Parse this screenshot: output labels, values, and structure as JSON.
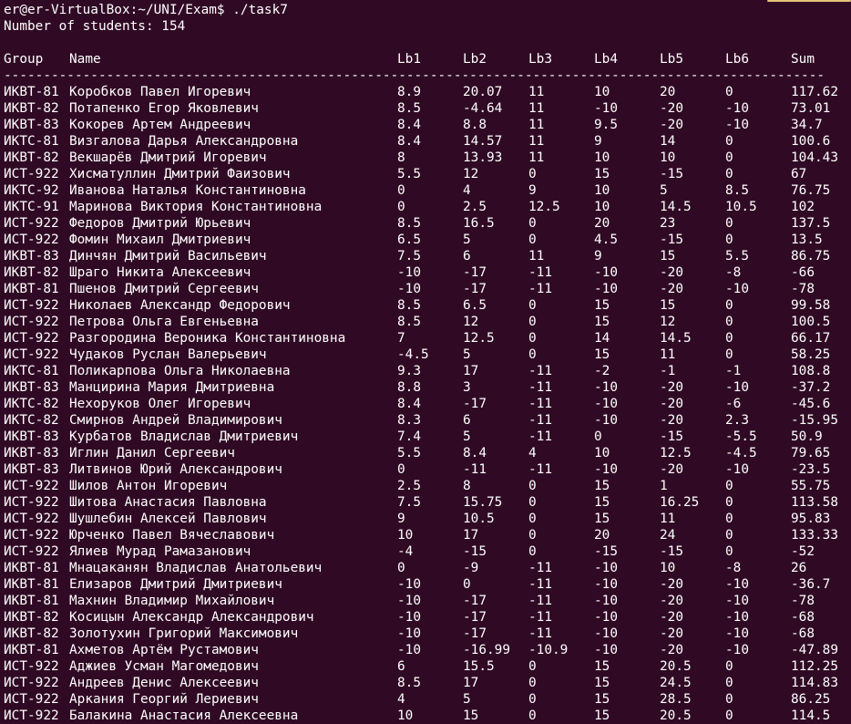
{
  "terminal": {
    "prompt": "er@er-VirtualBox:~/UNI/Exam$ ./task7",
    "count_line": "Number of students: 154",
    "headers": [
      "Group",
      "Name",
      "Lb1",
      "Lb2",
      "Lb3",
      "Lb4",
      "Lb5",
      "Lb6",
      "Sum"
    ],
    "separator": "--------------------------------------------------------------------------------------------------------------",
    "colors": {
      "background": "#300a24",
      "text": "#ffffff",
      "scroll_thumb": "#e6c27a"
    }
  },
  "rows": [
    [
      "ИКВТ-81",
      "Коробков Павел Игоревич",
      "8.9",
      "20.07",
      "11",
      "10",
      "20",
      "0",
      "117.62"
    ],
    [
      "ИКВТ-82",
      "Потапенко Егор Яковлевич",
      "8.5",
      "-4.64",
      "11",
      "-10",
      "-20",
      "-10",
      "73.01"
    ],
    [
      "ИКВТ-83",
      "Кокорев Артем Андреевич",
      "8.4",
      "8.8",
      "11",
      "9.5",
      "-20",
      "-10",
      "34.7"
    ],
    [
      "ИКТС-81",
      "Визгалова Дарья Александровна",
      "8.4",
      "14.57",
      "11",
      "9",
      "14",
      "0",
      "100.6"
    ],
    [
      "ИКВТ-82",
      "Векшарёв Дмитрий Игоревич",
      "8",
      "13.93",
      "11",
      "10",
      "10",
      "0",
      "104.43"
    ],
    [
      "ИСТ-922",
      "Хисматуллин Дмитрий Фаизович",
      "5.5",
      "12",
      "0",
      "15",
      "-15",
      "0",
      "67"
    ],
    [
      "ИКТС-92",
      "Иванова Наталья Константиновна",
      "0",
      "4",
      "9",
      "10",
      "5",
      "8.5",
      "76.75"
    ],
    [
      "ИКТС-91",
      "Маринова Виктория Константиновна",
      "0",
      "2.5",
      "12.5",
      "10",
      "14.5",
      "10.5",
      "102"
    ],
    [
      "ИСТ-922",
      "Федоров Дмитрий Юрьевич",
      "8.5",
      "16.5",
      "0",
      "20",
      "23",
      "0",
      "137.5"
    ],
    [
      "ИСТ-922",
      "Фомин Михаил Дмитриевич",
      "6.5",
      "5",
      "0",
      "4.5",
      "-15",
      "0",
      "13.5"
    ],
    [
      "ИКВТ-83",
      "Динчян Дмитрий Васильевич",
      "7.5",
      "6",
      "11",
      "9",
      "15",
      "5.5",
      "86.75"
    ],
    [
      "ИКВТ-82",
      "Шраго Никита Алексеевич",
      "-10",
      "-17",
      "-11",
      "-10",
      "-20",
      "-8",
      "-66"
    ],
    [
      "ИКВТ-81",
      "Пшенов Дмитрий Сергеевич",
      "-10",
      "-17",
      "-11",
      "-10",
      "-20",
      "-10",
      "-78"
    ],
    [
      "ИСТ-922",
      "Николаев Александр Федорович",
      "8.5",
      "6.5",
      "0",
      "15",
      "15",
      "0",
      "99.58"
    ],
    [
      "ИСТ-922",
      "Петрова Ольга Евгеньевна",
      "8.5",
      "12",
      "0",
      "15",
      "12",
      "0",
      "100.5"
    ],
    [
      "ИСТ-922",
      "Разгородина Вероника Константиновна",
      "7",
      "12.5",
      "0",
      "14",
      "14.5",
      "0",
      "66.17"
    ],
    [
      "ИСТ-922",
      "Чудаков Руслан Валерьевич",
      "-4.5",
      "5",
      "0",
      "15",
      "11",
      "0",
      "58.25"
    ],
    [
      "ИКТС-81",
      "Поликарпова Ольга Николаевна",
      "9.3",
      "17",
      "-11",
      "-2",
      "-1",
      "-1",
      "108.8"
    ],
    [
      "ИКВТ-83",
      "Манцирина Мария Дмитриевна",
      "8.8",
      "3",
      "-11",
      "-10",
      "-20",
      "-10",
      "-37.2"
    ],
    [
      "ИКТС-82",
      "Нехоруков Олег Игоревич",
      "8.4",
      "-17",
      "-11",
      "-10",
      "-20",
      "-6",
      "-45.6"
    ],
    [
      "ИКТС-82",
      "Смирнов Андрей Владимирович",
      "8.3",
      "6",
      "-11",
      "-10",
      "-20",
      "2.3",
      "-15.95"
    ],
    [
      "ИКВТ-83",
      "Курбатов Владислав Дмитриевич",
      "7.4",
      "5",
      "-11",
      "0",
      "-15",
      "-5.5",
      "50.9"
    ],
    [
      "ИКВТ-83",
      "Иглин Данил Сергеевич",
      "5.5",
      "8.4",
      "4",
      "10",
      "12.5",
      "-4.5",
      "79.65"
    ],
    [
      "ИКВТ-83",
      "Литвинов Юрий Александрович",
      "0",
      "-11",
      "-11",
      "-10",
      "-20",
      "-10",
      "-23.5"
    ],
    [
      "ИСТ-922",
      "Шилов Антон Игоревич",
      "2.5",
      "8",
      "0",
      "15",
      "1",
      "0",
      "55.75"
    ],
    [
      "ИСТ-922",
      "Шитова Анастасия Павловна",
      "7.5",
      "15.75",
      "0",
      "15",
      "16.25",
      "0",
      "113.58"
    ],
    [
      "ИСТ-922",
      "Шушлебин Алексей Павлович",
      "9",
      "10.5",
      "0",
      "15",
      "11",
      "0",
      "95.83"
    ],
    [
      "ИСТ-922",
      "Юрченко Павел Вячеславович",
      "10",
      "17",
      "0",
      "20",
      "24",
      "0",
      "133.33"
    ],
    [
      "ИСТ-922",
      "Ялиев Мурад Рамазанович",
      "-4",
      "-15",
      "0",
      "-15",
      "-15",
      "0",
      "-52"
    ],
    [
      "ИКВТ-81",
      "Мнацаканян Владислав Анатольевич",
      "0",
      "-9",
      "-11",
      "-10",
      "10",
      "-8",
      "26"
    ],
    [
      "ИКВТ-81",
      "Елизаров Дмитрий Дмитриевич",
      "-10",
      "0",
      "-11",
      "-10",
      "-20",
      "-10",
      "-36.7"
    ],
    [
      "ИКВТ-81",
      "Махнин Владимир Михайлович",
      "-10",
      "-17",
      "-11",
      "-10",
      "-20",
      "-10",
      "-78"
    ],
    [
      "ИКВТ-82",
      "Косицын Александр Александрович",
      "-10",
      "-17",
      "-11",
      "-10",
      "-20",
      "-10",
      "-68"
    ],
    [
      "ИКВТ-82",
      "Золотухин Григорий Максимович",
      "-10",
      "-17",
      "-11",
      "-10",
      "-20",
      "-10",
      "-68"
    ],
    [
      "ИКВТ-81",
      "Ахметов Артём Рустамович",
      "-10",
      "-16.99",
      "-10.9",
      "-10",
      "-20",
      "-10",
      "-47.89"
    ],
    [
      "ИСТ-922",
      "Аджиев Усман Магомедович",
      "6",
      "15.5",
      "0",
      "15",
      "20.5",
      "0",
      "112.25"
    ],
    [
      "ИСТ-922",
      "Андреев Денис Алексеевич",
      "8.5",
      "17",
      "0",
      "15",
      "24.5",
      "0",
      "114.83"
    ],
    [
      "ИСТ-922",
      "Аркания Георгий Лериевич",
      "4",
      "5",
      "0",
      "15",
      "28.5",
      "0",
      "86.25"
    ],
    [
      "ИСТ-922",
      "Балакина Анастасия Алексеевна",
      "10",
      "15",
      "0",
      "15",
      "20.5",
      "0",
      "114.5"
    ]
  ]
}
